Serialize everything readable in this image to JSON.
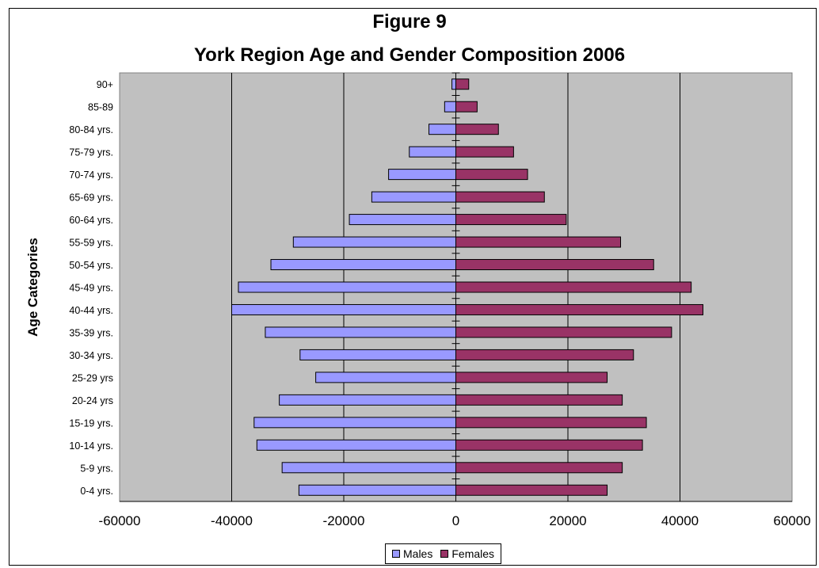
{
  "chart_data": {
    "type": "bar",
    "orientation": "horizontal",
    "title": "Figure 9",
    "subtitle": "York Region Age and Gender Composition 2006",
    "ylabel": "Age Categories",
    "xlabel": "",
    "xlim": [
      -60000,
      60000
    ],
    "xticks": [
      "-60000",
      "-40000",
      "-20000",
      "0",
      "20000",
      "40000",
      "60000"
    ],
    "categories": [
      "0-4 yrs.",
      "5-9 yrs.",
      "10-14 yrs.",
      "15-19 yrs.",
      "20-24 yrs",
      "25-29 yrs",
      "30-34 yrs.",
      "35-39 yrs.",
      "40-44 yrs.",
      "45-49 yrs.",
      "50-54 yrs.",
      "55-59 yrs.",
      "60-64 yrs.",
      "65-69 yrs.",
      "70-74 yrs.",
      "75-79 yrs.",
      "80-84 yrs.",
      "85-89",
      "90+"
    ],
    "series": [
      {
        "name": "Males",
        "color": "#9999ff",
        "values": [
          -28000,
          -31000,
          -35500,
          -36000,
          -31500,
          -25000,
          -27800,
          -34000,
          -40000,
          -38800,
          -33000,
          -29000,
          -19000,
          -15000,
          -12000,
          -8300,
          -4800,
          -2000,
          -700
        ]
      },
      {
        "name": "Females",
        "color": "#993366",
        "values": [
          27000,
          29700,
          33300,
          34000,
          29700,
          27000,
          31700,
          38500,
          44100,
          42000,
          35300,
          29400,
          19700,
          15800,
          12800,
          10300,
          7600,
          3800,
          2300
        ]
      }
    ],
    "grid": true,
    "plot_background": "#c0c0c0",
    "legend_position": "bottom"
  }
}
